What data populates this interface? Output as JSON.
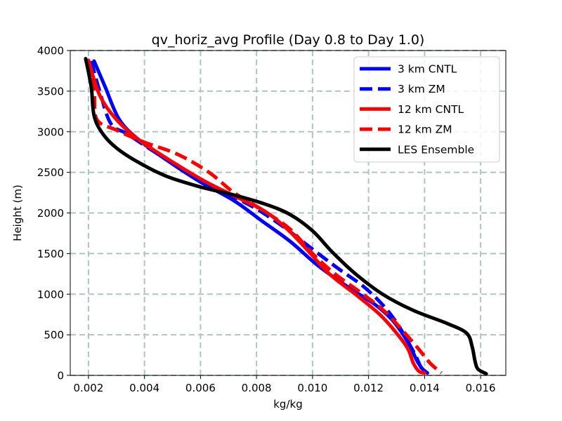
{
  "chart_data": {
    "type": "line",
    "title": "qv_horiz_avg Profile (Day 0.8 to Day 1.0)",
    "xlabel": "kg/kg",
    "ylabel": "Height (m)",
    "xlim": [
      0.00135,
      0.0169
    ],
    "ylim": [
      0,
      4000
    ],
    "xticks": [
      0.002,
      0.004,
      0.006,
      0.008,
      0.01,
      0.012,
      0.014,
      0.016
    ],
    "xtick_labels": [
      "0.002",
      "0.004",
      "0.006",
      "0.008",
      "0.010",
      "0.012",
      "0.014",
      "0.016"
    ],
    "yticks": [
      0,
      500,
      1000,
      1500,
      2000,
      2500,
      3000,
      3500,
      4000
    ],
    "ytick_labels": [
      "0",
      "500",
      "1000",
      "1500",
      "2000",
      "2500",
      "3000",
      "3500",
      "4000"
    ],
    "grid": true,
    "legend_position": "top-right",
    "series": [
      {
        "name": "3 km CNTL",
        "color": "#0000ff",
        "style": "solid",
        "points": [
          [
            0.0022,
            3870
          ],
          [
            0.0026,
            3550
          ],
          [
            0.0031,
            3150
          ],
          [
            0.0038,
            2900
          ],
          [
            0.0048,
            2650
          ],
          [
            0.006,
            2380
          ],
          [
            0.0072,
            2150
          ],
          [
            0.0082,
            1900
          ],
          [
            0.0092,
            1650
          ],
          [
            0.0102,
            1350
          ],
          [
            0.0113,
            1080
          ],
          [
            0.0122,
            880
          ],
          [
            0.0128,
            700
          ],
          [
            0.0132,
            520
          ],
          [
            0.0135,
            350
          ],
          [
            0.0137,
            200
          ],
          [
            0.0139,
            90
          ],
          [
            0.0141,
            30
          ]
        ]
      },
      {
        "name": "3 km ZM",
        "color": "#0000ff",
        "style": "dashed",
        "points": [
          [
            0.0021,
            3870
          ],
          [
            0.0024,
            3500
          ],
          [
            0.0028,
            3100
          ],
          [
            0.0034,
            2970
          ],
          [
            0.0045,
            2720
          ],
          [
            0.0058,
            2450
          ],
          [
            0.007,
            2230
          ],
          [
            0.008,
            2050
          ],
          [
            0.009,
            1820
          ],
          [
            0.0099,
            1580
          ],
          [
            0.0109,
            1320
          ],
          [
            0.0118,
            1100
          ],
          [
            0.0125,
            870
          ],
          [
            0.013,
            650
          ],
          [
            0.0134,
            420
          ],
          [
            0.0137,
            230
          ],
          [
            0.0139,
            80
          ],
          [
            0.0141,
            30
          ]
        ]
      },
      {
        "name": "12 km CNTL",
        "color": "#ff0000",
        "style": "solid",
        "points": [
          [
            0.002,
            3880
          ],
          [
            0.0024,
            3450
          ],
          [
            0.003,
            3150
          ],
          [
            0.0038,
            2900
          ],
          [
            0.0049,
            2650
          ],
          [
            0.0061,
            2400
          ],
          [
            0.0072,
            2210
          ],
          [
            0.0083,
            2020
          ],
          [
            0.0091,
            1800
          ],
          [
            0.0098,
            1550
          ],
          [
            0.0106,
            1250
          ],
          [
            0.0116,
            980
          ],
          [
            0.0124,
            750
          ],
          [
            0.013,
            520
          ],
          [
            0.0134,
            330
          ],
          [
            0.0136,
            150
          ],
          [
            0.0138,
            50
          ],
          [
            0.014,
            30
          ]
        ]
      },
      {
        "name": "12 km ZM",
        "color": "#ff0000",
        "style": "dashed",
        "points": [
          [
            0.002,
            3880
          ],
          [
            0.0022,
            3500
          ],
          [
            0.0023,
            3150
          ],
          [
            0.003,
            3020
          ],
          [
            0.004,
            2870
          ],
          [
            0.0052,
            2720
          ],
          [
            0.0063,
            2500
          ],
          [
            0.0072,
            2250
          ],
          [
            0.0082,
            2040
          ],
          [
            0.0092,
            1800
          ],
          [
            0.01,
            1500
          ],
          [
            0.0108,
            1250
          ],
          [
            0.0118,
            1000
          ],
          [
            0.0126,
            780
          ],
          [
            0.0133,
            520
          ],
          [
            0.0138,
            320
          ],
          [
            0.0142,
            150
          ],
          [
            0.0146,
            30
          ]
        ]
      },
      {
        "name": "LES Ensemble",
        "color": "#000000",
        "style": "solid",
        "points": [
          [
            0.0019,
            3900
          ],
          [
            0.0021,
            3550
          ],
          [
            0.0022,
            3200
          ],
          [
            0.0025,
            2980
          ],
          [
            0.003,
            2800
          ],
          [
            0.0038,
            2620
          ],
          [
            0.0048,
            2450
          ],
          [
            0.006,
            2320
          ],
          [
            0.0072,
            2220
          ],
          [
            0.0083,
            2110
          ],
          [
            0.0092,
            1980
          ],
          [
            0.01,
            1780
          ],
          [
            0.0107,
            1520
          ],
          [
            0.0115,
            1260
          ],
          [
            0.0125,
            1000
          ],
          [
            0.0136,
            800
          ],
          [
            0.0148,
            640
          ],
          [
            0.0155,
            520
          ],
          [
            0.0157,
            350
          ],
          [
            0.0158,
            180
          ],
          [
            0.0159,
            80
          ],
          [
            0.0162,
            20
          ]
        ]
      }
    ]
  }
}
